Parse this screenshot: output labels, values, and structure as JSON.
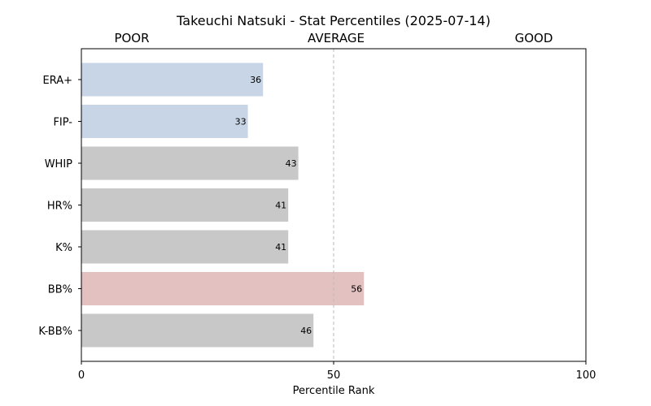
{
  "chart_data": {
    "type": "bar",
    "orientation": "horizontal",
    "title": "Takeuchi Natsuki - Stat Percentiles (2025-07-14)",
    "band_labels": [
      "POOR",
      "AVERAGE",
      "GOOD"
    ],
    "xlabel": "Percentile Rank",
    "ylabel": "",
    "xlim": [
      0,
      100
    ],
    "xticks": [
      0,
      50,
      100
    ],
    "reference_line": 50,
    "categories": [
      "ERA+",
      "FIP-",
      "WHIP",
      "HR%",
      "K%",
      "BB%",
      "K-BB%"
    ],
    "values": [
      36,
      33,
      43,
      41,
      41,
      56,
      46
    ],
    "bar_colors": [
      "#c8d5e6",
      "#c8d5e6",
      "#c8c8c8",
      "#c8c8c8",
      "#c8c8c8",
      "#e4c1c1",
      "#c8c8c8"
    ],
    "grid": false,
    "legend": "none"
  }
}
